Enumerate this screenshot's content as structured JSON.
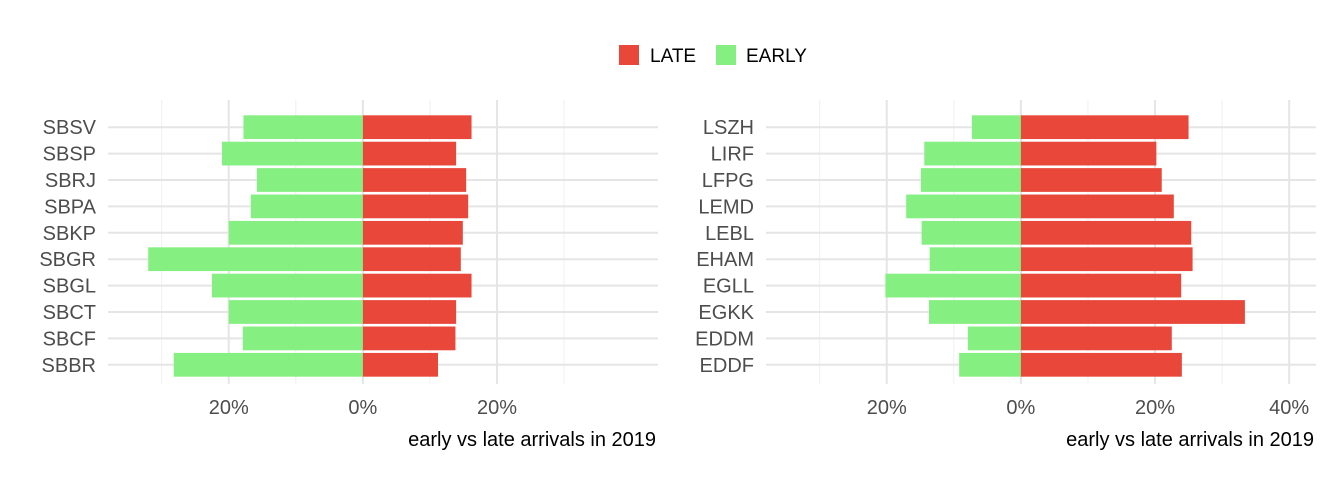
{
  "legend": {
    "items": [
      {
        "label": "LATE",
        "color": "#E8473A"
      },
      {
        "label": "EARLY",
        "color": "#86EF82"
      }
    ]
  },
  "chart_data": [
    {
      "type": "bar",
      "orientation": "horizontal",
      "diverging": true,
      "xlabel": "early vs late arrivals in  2019",
      "x_tick_labels": [
        "20%",
        "0%",
        "20%"
      ],
      "x_tick_values": [
        -0.2,
        0,
        0.2
      ],
      "xlim": [
        -0.38,
        0.44
      ],
      "categories": [
        "SBSV",
        "SBSP",
        "SBRJ",
        "SBPA",
        "SBKP",
        "SBGR",
        "SBGL",
        "SBCT",
        "SBCF",
        "SBBR"
      ],
      "series": [
        {
          "name": "LATE",
          "values": [
            0.162,
            0.139,
            0.154,
            0.157,
            0.149,
            0.146,
            0.162,
            0.139,
            0.138,
            0.112
          ]
        },
        {
          "name": "EARLY",
          "values": [
            -0.178,
            -0.21,
            -0.158,
            -0.167,
            -0.2,
            -0.32,
            -0.225,
            -0.2,
            -0.179,
            -0.282
          ]
        }
      ]
    },
    {
      "type": "bar",
      "orientation": "horizontal",
      "diverging": true,
      "xlabel": "early vs late arrivals in  2019",
      "x_tick_labels": [
        "20%",
        "0%",
        "20%",
        "40%"
      ],
      "x_tick_values": [
        -0.2,
        0,
        0.2,
        0.4
      ],
      "xlim": [
        -0.38,
        0.44
      ],
      "categories": [
        "LSZH",
        "LIRF",
        "LFPG",
        "LEMD",
        "LEBL",
        "EHAM",
        "EGLL",
        "EGKK",
        "EDDM",
        "EDDF"
      ],
      "series": [
        {
          "name": "LATE",
          "values": [
            0.25,
            0.202,
            0.21,
            0.228,
            0.254,
            0.256,
            0.239,
            0.334,
            0.225,
            0.24
          ]
        },
        {
          "name": "EARLY",
          "values": [
            -0.073,
            -0.144,
            -0.149,
            -0.171,
            -0.148,
            -0.136,
            -0.202,
            -0.137,
            -0.079,
            -0.092
          ]
        }
      ]
    }
  ]
}
